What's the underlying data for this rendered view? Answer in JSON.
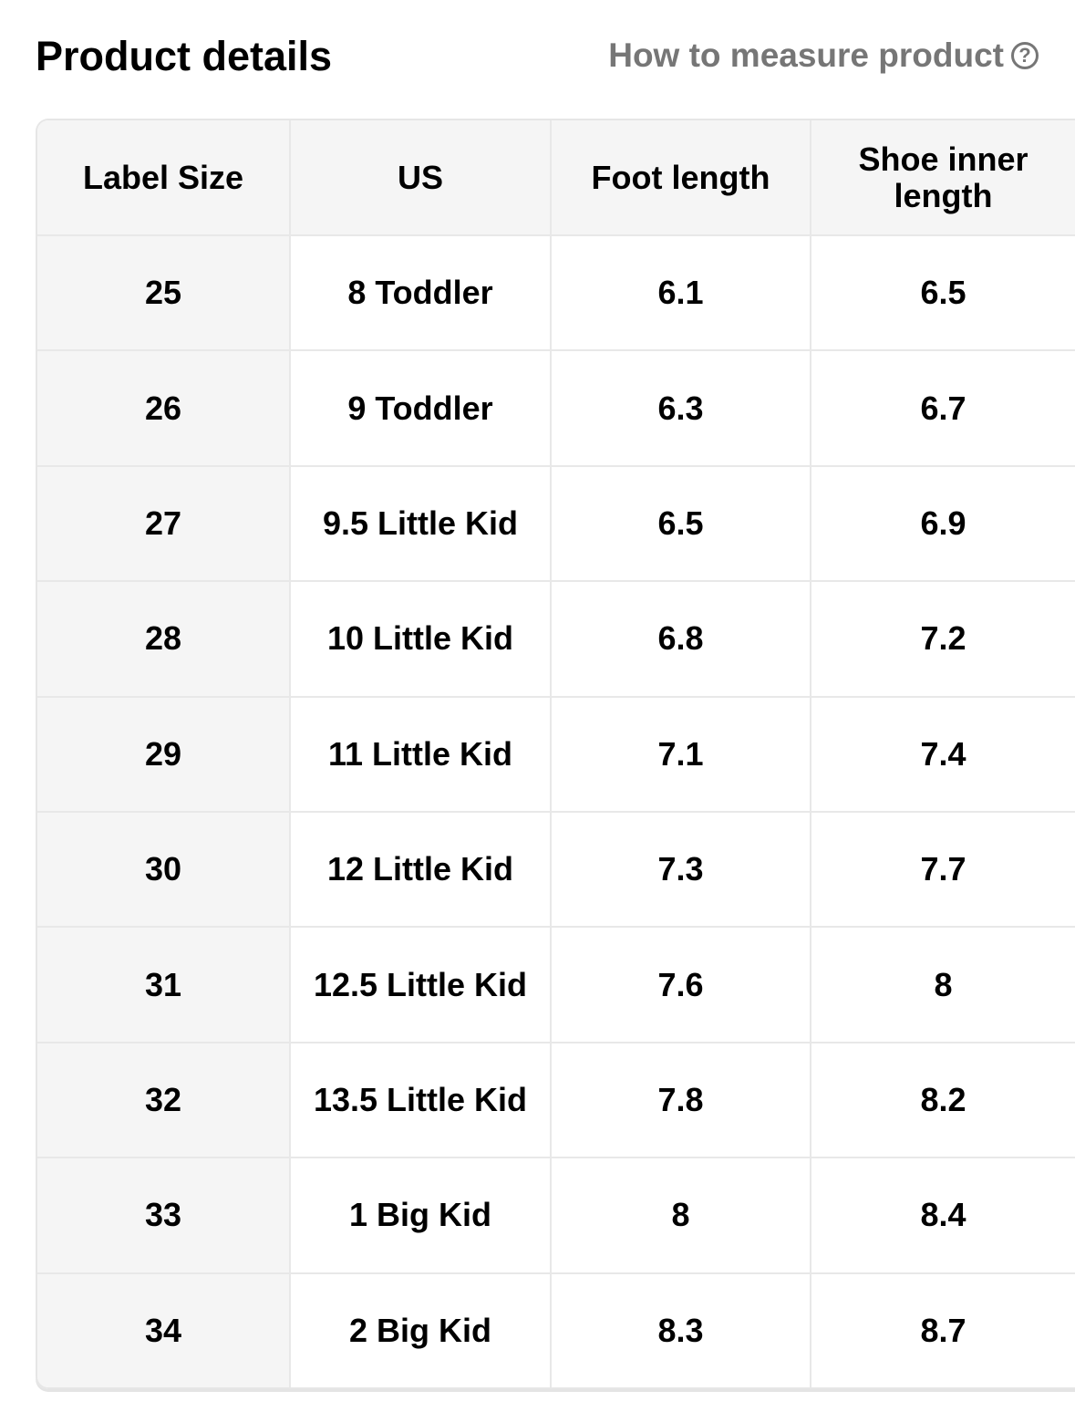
{
  "header": {
    "title": "Product details",
    "measure_link": "How to measure product",
    "help_icon": "question-circle-icon"
  },
  "table": {
    "columns": [
      "Label Size",
      "US",
      "Foot length",
      "Shoe inner length"
    ],
    "rows": [
      [
        "25",
        "8 Toddler",
        "6.1",
        "6.5"
      ],
      [
        "26",
        "9 Toddler",
        "6.3",
        "6.7"
      ],
      [
        "27",
        "9.5 Little Kid",
        "6.5",
        "6.9"
      ],
      [
        "28",
        "10 Little Kid",
        "6.8",
        "7.2"
      ],
      [
        "29",
        "11 Little Kid",
        "7.1",
        "7.4"
      ],
      [
        "30",
        "12 Little Kid",
        "7.3",
        "7.7"
      ],
      [
        "31",
        "12.5 Little Kid",
        "7.6",
        "8"
      ],
      [
        "32",
        "13.5 Little Kid",
        "7.8",
        "8.2"
      ],
      [
        "33",
        "1 Big Kid",
        "8",
        "8.4"
      ],
      [
        "34",
        "2 Big Kid",
        "8.3",
        "8.7"
      ]
    ]
  }
}
